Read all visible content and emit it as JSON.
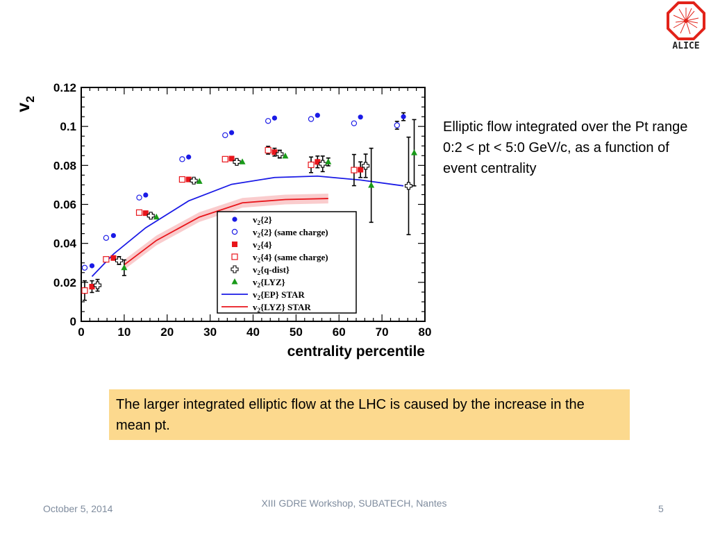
{
  "logo": {
    "label": "ALICE",
    "color": "#e2231a"
  },
  "side_text": "Elliptic flow integrated over the Pt range 0:2 < pt < 5:0 GeV/c, as a function of event centrality",
  "highlight_text": "The larger integrated elliptic flow at the LHC is caused by the increase in the mean pt.",
  "footer": {
    "date": "October 5, 2014",
    "event": "XIII GDRE Workshop, SUBATECH, Nantes",
    "page": "5"
  },
  "chart_data": {
    "type": "scatter",
    "xlabel": "centrality percentile",
    "ylabel": "v",
    "ylabel_sub": "2",
    "xlim": [
      0,
      80
    ],
    "ylim": [
      0,
      0.12
    ],
    "xticks": [
      0,
      10,
      20,
      30,
      40,
      50,
      60,
      70,
      80
    ],
    "yticks": [
      0,
      0.02,
      0.04,
      0.06,
      0.08,
      0.1,
      0.12
    ],
    "ytick_labels": [
      "0",
      "0.02",
      "0.04",
      "0.06",
      "0.08",
      "0.1",
      "0.12"
    ],
    "legend_position": "bottom-right",
    "series": [
      {
        "name": "v2{2}",
        "label_main": "v",
        "label_sub": "2",
        "label_rest": "{2}",
        "marker": "filled-circle",
        "color": "#1a1ae6",
        "x": [
          2.5,
          7.5,
          15,
          25,
          35,
          45,
          55,
          65,
          75
        ],
        "y": [
          0.0285,
          0.044,
          0.0648,
          0.0843,
          0.0968,
          0.1043,
          0.1057,
          0.1048,
          0.105
        ],
        "err": [
          0,
          0,
          0,
          0,
          0,
          0,
          0,
          0,
          0.002
        ]
      },
      {
        "name": "v2{2} (same charge)",
        "label_main": "v",
        "label_sub": "2",
        "label_rest": "{2} (same charge)",
        "marker": "open-circle",
        "color": "#1a1ae6",
        "x": [
          0.8,
          5.8,
          13.5,
          23.5,
          33.5,
          43.5,
          53.5,
          63.5,
          73.5
        ],
        "y": [
          0.0275,
          0.0428,
          0.0635,
          0.0832,
          0.0955,
          0.1028,
          0.1038,
          0.1016,
          0.1006
        ],
        "err": [
          0,
          0,
          0,
          0,
          0,
          0,
          0,
          0,
          0.002
        ]
      },
      {
        "name": "v2{4}",
        "label_main": "v",
        "label_sub": "2",
        "label_rest": "{4}",
        "marker": "filled-square",
        "color": "#e8151b",
        "x": [
          2.5,
          7.5,
          15,
          25,
          35,
          45,
          55,
          65
        ],
        "y": [
          0.0178,
          0.0325,
          0.0555,
          0.0728,
          0.0835,
          0.0868,
          0.0818,
          0.0778
        ],
        "err": [
          0.003,
          0.001,
          0.001,
          0.001,
          0.001,
          0.002,
          0.003,
          0.004
        ]
      },
      {
        "name": "v2{4} (same charge)",
        "label_main": "v",
        "label_sub": "2",
        "label_rest": "{4} (same charge)",
        "marker": "open-square",
        "color": "#e8151b",
        "x": [
          0.8,
          5.8,
          13.5,
          23.5,
          33.5,
          43.5,
          53.5,
          63.5
        ],
        "y": [
          0.0158,
          0.0318,
          0.0558,
          0.0728,
          0.0832,
          0.0878,
          0.0803,
          0.0776
        ],
        "err": [
          0.005,
          0.001,
          0.001,
          0.001,
          0.001,
          0.002,
          0.004,
          0.008
        ]
      },
      {
        "name": "v2{q-dist}",
        "label_main": "v",
        "label_sub": "2",
        "label_rest": "{q-dist}",
        "marker": "open-cross",
        "color": "#000000",
        "x": [
          3.8,
          8.8,
          16.2,
          26.2,
          36.2,
          46.2,
          56.2,
          66.2,
          76.2
        ],
        "y": [
          0.0185,
          0.0312,
          0.0542,
          0.0722,
          0.0818,
          0.0858,
          0.0808,
          0.0798,
          0.0695
        ],
        "err": [
          0.003,
          0.002,
          0.001,
          0.001,
          0.001,
          0.002,
          0.004,
          0.006,
          0.025
        ]
      },
      {
        "name": "v2{LYZ}",
        "label_main": "v",
        "label_sub": "2",
        "label_rest": "{LYZ}",
        "marker": "filled-triangle",
        "color": "#199a19",
        "x": [
          10,
          17.5,
          27.5,
          37.5,
          47.5,
          57.5,
          67.5,
          77.5
        ],
        "y": [
          0.0275,
          0.0535,
          0.0718,
          0.0818,
          0.0848,
          0.0818,
          0.0698,
          0.0865
        ],
        "err": [
          0.004,
          0,
          0,
          0,
          0,
          0.002,
          0.019,
          0.017
        ]
      },
      {
        "name": "v2{EP} STAR",
        "label_main": "v",
        "label_sub": "2",
        "label_rest": "{EP} STAR",
        "marker": "line",
        "color": "#1a1ae6",
        "x": [
          2.5,
          7.5,
          15,
          25,
          35,
          45,
          55,
          65,
          75
        ],
        "y": [
          0.023,
          0.0345,
          0.048,
          0.0618,
          0.0703,
          0.0738,
          0.0745,
          0.0725,
          0.0695
        ]
      },
      {
        "name": "v2{LYZ} STAR",
        "label_main": "v",
        "label_sub": "2",
        "label_rest": "{LYZ} STAR",
        "marker": "line-band",
        "color": "#e8151b",
        "x": [
          10,
          17.5,
          27.5,
          37.5,
          47.5,
          57.5
        ],
        "y": [
          0.029,
          0.0415,
          0.0535,
          0.0608,
          0.0625,
          0.063
        ],
        "band": 0.0025
      }
    ]
  }
}
